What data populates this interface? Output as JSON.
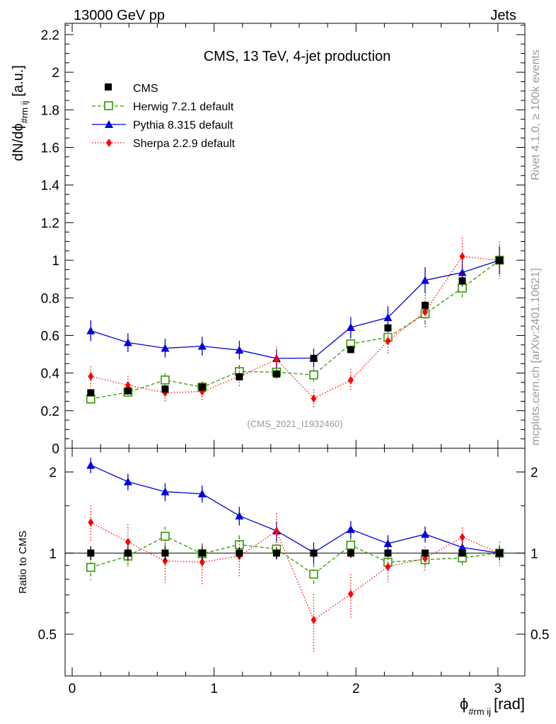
{
  "header": {
    "left": "13000 GeV pp",
    "right": "Jets"
  },
  "side_labels": {
    "upper": "Rivet 4.1.0, ≥ 100k events",
    "lower": "mcplots.cern.ch [arXiv:2401.10621]"
  },
  "chart_data": {
    "type": "scatter",
    "title": "CMS, 13 TeV, 4-jet production",
    "watermark": "(CMS_2021_I1932460)",
    "xlabel_main": "ϕ",
    "xlabel_sub": "#rm ij",
    "xlabel_unit": "[rad]",
    "ylabel_main": "dN/dϕ",
    "ylabel_sub": "#rm ij",
    "ylabel_unit": "[a.u.]",
    "ratio_ylabel": "Ratio to CMS",
    "xlim": [
      -0.05,
      3.19
    ],
    "ylim": [
      0,
      2.26
    ],
    "ratio_ylim": [
      0.35,
      2.45
    ],
    "x_ticks": [
      "0",
      "1",
      "2",
      "3"
    ],
    "y_ticks": [
      "0",
      "0.2",
      "0.4",
      "0.6",
      "0.8",
      "1",
      "1.2",
      "1.4",
      "1.6",
      "1.8",
      "2",
      "2.2"
    ],
    "ratio_ticks": [
      "0.5",
      "1",
      "2"
    ],
    "x": [
      0.131,
      0.393,
      0.655,
      0.916,
      1.178,
      1.44,
      1.702,
      1.963,
      2.225,
      2.487,
      2.749,
      3.011
    ],
    "series": [
      {
        "name": "CMS",
        "color": "#000000",
        "values": [
          0.295,
          0.305,
          0.315,
          0.325,
          0.38,
          0.395,
          0.478,
          0.525,
          0.64,
          0.76,
          0.89,
          1.0
        ],
        "errors": [
          0.02,
          0.02,
          0.02,
          0.02,
          0.02,
          0.02,
          0.02,
          0.02,
          0.02,
          0.02,
          0.02,
          0.02
        ],
        "ratio": [
          1.0,
          1.0,
          1.0,
          1.0,
          1.0,
          1.0,
          1.0,
          1.0,
          1.0,
          1.0,
          1.0,
          1.0
        ],
        "ratio_errors": [
          0.06,
          0.06,
          0.06,
          0.06,
          0.05,
          0.05,
          0.04,
          0.04,
          0.03,
          0.03,
          0.02,
          0.02
        ]
      },
      {
        "name": "Herwig 7.2.1 default",
        "color": "#339900",
        "values": [
          0.262,
          0.298,
          0.363,
          0.325,
          0.408,
          0.405,
          0.39,
          0.555,
          0.59,
          0.715,
          0.852,
          1.0
        ],
        "errors": [
          0.03,
          0.03,
          0.035,
          0.03,
          0.035,
          0.035,
          0.035,
          0.045,
          0.045,
          0.055,
          0.06,
          0.07
        ],
        "ratio": [
          0.885,
          0.975,
          1.155,
          0.995,
          1.075,
          1.035,
          0.835,
          1.07,
          0.925,
          0.945,
          0.96,
          1.0
        ],
        "ratio_errors": [
          0.09,
          0.09,
          0.1,
          0.09,
          0.09,
          0.09,
          0.08,
          0.08,
          0.07,
          0.07,
          0.06,
          0.06
        ]
      },
      {
        "name": "Pythia 8.315 default",
        "color": "#0000dd",
        "values": [
          0.625,
          0.562,
          0.532,
          0.543,
          0.522,
          0.478,
          0.48,
          0.643,
          0.695,
          0.893,
          0.935,
          1.0
        ],
        "errors": [
          0.055,
          0.05,
          0.05,
          0.05,
          0.05,
          0.05,
          0.05,
          0.055,
          0.06,
          0.07,
          0.075,
          0.075
        ],
        "ratio": [
          2.12,
          1.84,
          1.69,
          1.66,
          1.375,
          1.21,
          1.005,
          1.225,
          1.085,
          1.175,
          1.05,
          1.0
        ],
        "ratio_errors": [
          0.14,
          0.13,
          0.13,
          0.12,
          0.11,
          0.1,
          0.09,
          0.09,
          0.08,
          0.08,
          0.06,
          0.06
        ]
      },
      {
        "name": "Sherpa 2.2.9 default",
        "color": "#ff0000",
        "values": [
          0.382,
          0.335,
          0.295,
          0.302,
          0.382,
          0.472,
          0.265,
          0.362,
          0.57,
          0.725,
          1.02,
          1.0
        ],
        "errors": [
          0.055,
          0.05,
          0.05,
          0.05,
          0.06,
          0.07,
          0.05,
          0.06,
          0.075,
          0.09,
          0.1,
          0.1
        ],
        "ratio": [
          1.3,
          1.1,
          0.935,
          0.925,
          0.975,
          1.205,
          0.565,
          0.705,
          0.89,
          0.955,
          1.145,
          1.0
        ],
        "ratio_errors": [
          0.2,
          0.18,
          0.16,
          0.16,
          0.16,
          0.2,
          0.14,
          0.13,
          0.11,
          0.1,
          0.1,
          0.1
        ]
      }
    ]
  }
}
